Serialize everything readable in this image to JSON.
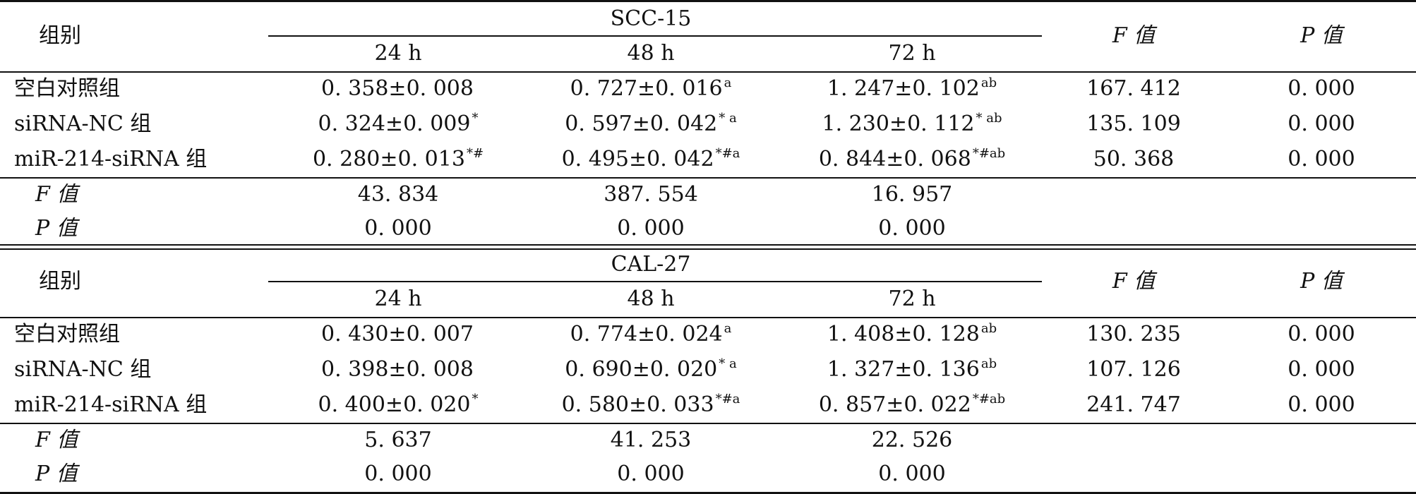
{
  "sections": [
    {
      "line": "SCC-15",
      "header": {
        "group": "组别",
        "times": [
          "24 h",
          "48 h",
          "72 h"
        ],
        "f_col": "F 值",
        "p_col": "P 值"
      },
      "rows": [
        {
          "name": "空白对照组",
          "v24": "0. 358±0. 008",
          "s24": "",
          "v48": "0. 727±0. 016",
          "s48": "a",
          "v72": "1. 247±0. 102",
          "s72": "ab",
          "f": "167. 412",
          "p": "0. 000"
        },
        {
          "name": "siRNA-NC 组",
          "v24": "0. 324±0. 009",
          "s24": "*",
          "v48": "0. 597±0. 042",
          "s48": "* a",
          "v72": "1. 230±0. 112",
          "s72": "* ab",
          "f": "135. 109",
          "p": "0. 000"
        },
        {
          "name": "miR-214-siRNA 组",
          "v24": "0. 280±0. 013",
          "s24": "*#",
          "v48": "0. 495±0. 042",
          "s48": "*#a",
          "v72": "0. 844±0. 068",
          "s72": "*#ab",
          "f": "50. 368",
          "p": "0. 000"
        }
      ],
      "f_row": {
        "label": "F 值",
        "v24": "43. 834",
        "v48": "387. 554",
        "v72": "16. 957"
      },
      "p_row": {
        "label": "P 值",
        "v24": "0. 000",
        "v48": "0. 000",
        "v72": "0. 000"
      }
    },
    {
      "line": "CAL-27",
      "header": {
        "group": "组别",
        "times": [
          "24 h",
          "48 h",
          "72 h"
        ],
        "f_col": "F 值",
        "p_col": "P 值"
      },
      "rows": [
        {
          "name": "空白对照组",
          "v24": "0. 430±0. 007",
          "s24": "",
          "v48": "0. 774±0. 024",
          "s48": "a",
          "v72": "1. 408±0. 128",
          "s72": "ab",
          "f": "130. 235",
          "p": "0. 000"
        },
        {
          "name": "siRNA-NC 组",
          "v24": "0. 398±0. 008",
          "s24": "",
          "v48": "0. 690±0. 020",
          "s48": "* a",
          "v72": "1. 327±0. 136",
          "s72": "ab",
          "f": "107. 126",
          "p": "0. 000"
        },
        {
          "name": "miR-214-siRNA 组",
          "v24": "0. 400±0. 020",
          "s24": "*",
          "v48": "0. 580±0. 033",
          "s48": "*#a",
          "v72": "0. 857±0. 022",
          "s72": "*#ab",
          "f": "241. 747",
          "p": "0. 000"
        }
      ],
      "f_row": {
        "label": "F 值",
        "v24": "5. 637",
        "v48": "41. 253",
        "v72": "22. 526"
      },
      "p_row": {
        "label": "P 值",
        "v24": "0. 000",
        "v48": "0. 000",
        "v72": "0. 000"
      }
    }
  ]
}
